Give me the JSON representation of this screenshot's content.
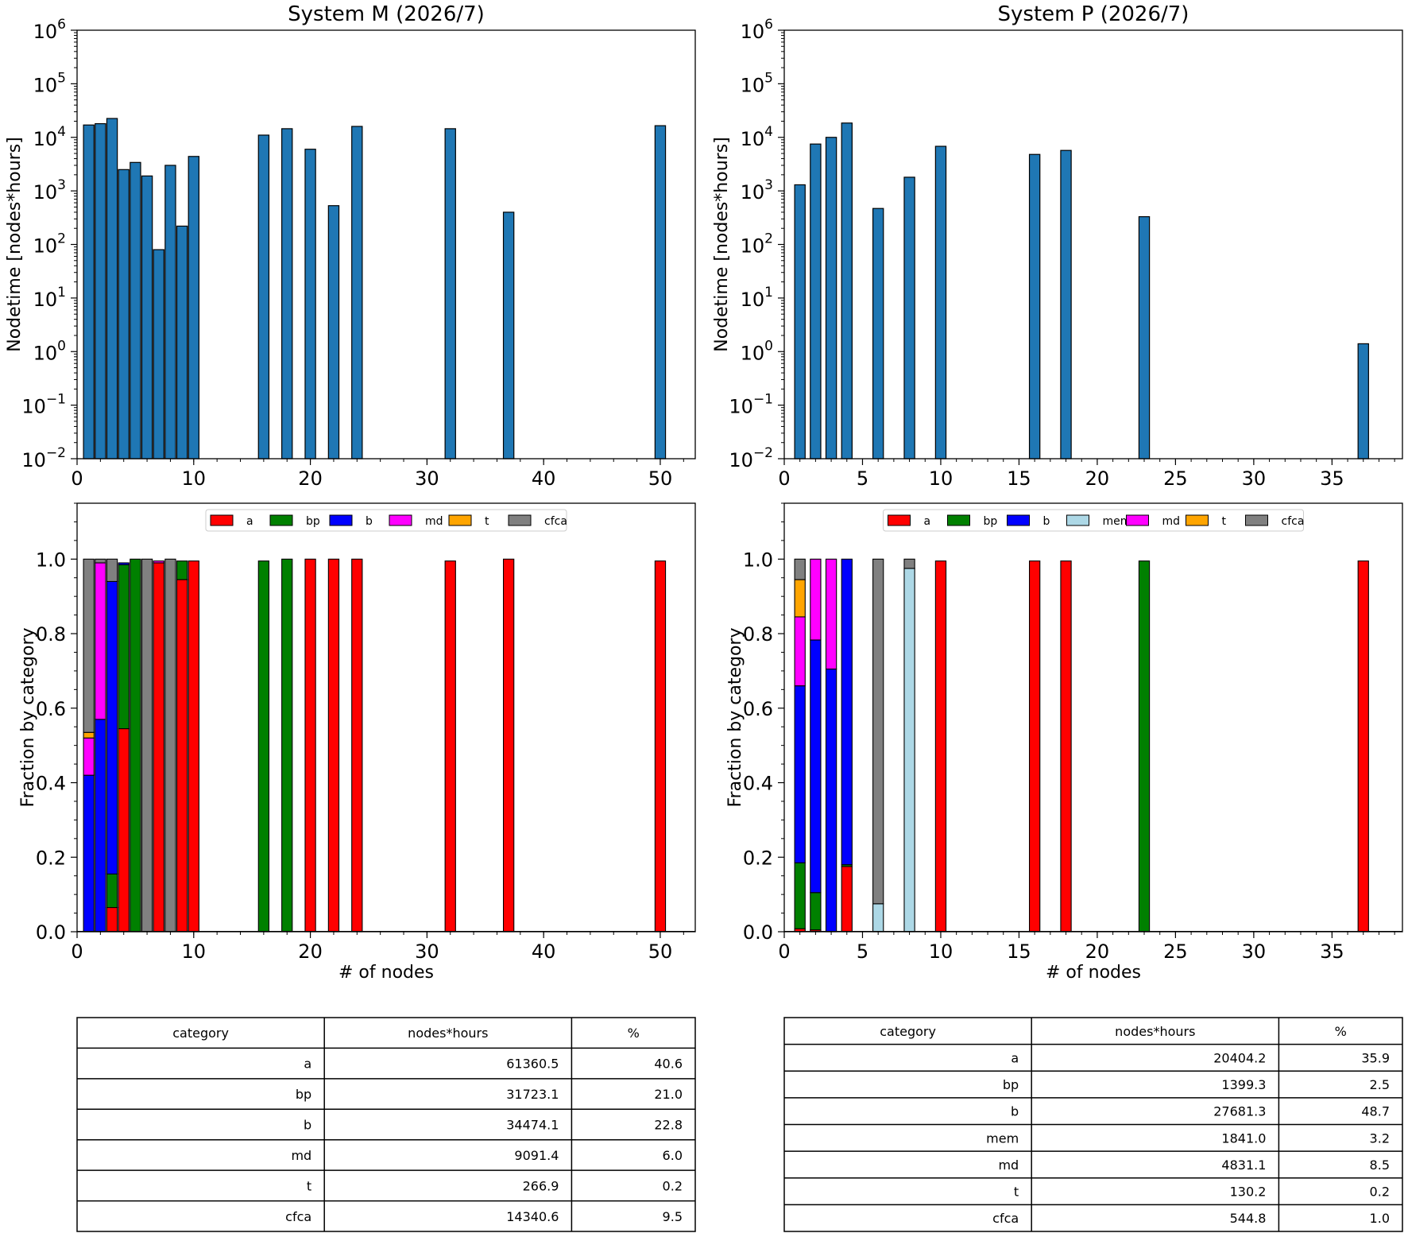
{
  "chart_data": [
    {
      "id": "m-hist",
      "type": "bar",
      "title": "System M (2026/7)",
      "ylabel": "Nodetime [nodes*hours]",
      "xlabel": "",
      "yscale": "log",
      "xlim": [
        0,
        53
      ],
      "ylim": [
        0.01,
        1000000
      ],
      "x_ticks": [
        0,
        10,
        20,
        30,
        40,
        50
      ],
      "y_ticks": [
        {
          "base": "10",
          "exp": "−2"
        },
        {
          "base": "10",
          "exp": "−1"
        },
        {
          "base": "10",
          "exp": "0"
        },
        {
          "base": "10",
          "exp": "1"
        },
        {
          "base": "10",
          "exp": "2"
        },
        {
          "base": "10",
          "exp": "3"
        },
        {
          "base": "10",
          "exp": "4"
        },
        {
          "base": "10",
          "exp": "5"
        },
        {
          "base": "10",
          "exp": "6"
        }
      ],
      "bar_color": "#1f77b4",
      "x": [
        1,
        2,
        3,
        4,
        5,
        6,
        7,
        8,
        9,
        10,
        16,
        18,
        20,
        22,
        24,
        32,
        37,
        50
      ],
      "values": [
        17000,
        18000,
        22500,
        2500,
        3400,
        1900,
        80,
        3000,
        220,
        4400,
        11000,
        14500,
        6000,
        530,
        16000,
        14500,
        400,
        16500
      ]
    },
    {
      "id": "p-hist",
      "type": "bar",
      "title": "System P (2026/7)",
      "ylabel": "Nodetime [nodes*hours]",
      "xlabel": "",
      "yscale": "log",
      "xlim": [
        0,
        39.5
      ],
      "ylim": [
        0.01,
        1000000
      ],
      "x_ticks": [
        0,
        5,
        10,
        15,
        20,
        25,
        30,
        35
      ],
      "y_ticks": [
        {
          "base": "10",
          "exp": "−2"
        },
        {
          "base": "10",
          "exp": "−1"
        },
        {
          "base": "10",
          "exp": "0"
        },
        {
          "base": "10",
          "exp": "1"
        },
        {
          "base": "10",
          "exp": "2"
        },
        {
          "base": "10",
          "exp": "3"
        },
        {
          "base": "10",
          "exp": "4"
        },
        {
          "base": "10",
          "exp": "5"
        },
        {
          "base": "10",
          "exp": "6"
        }
      ],
      "bar_color": "#1f77b4",
      "x": [
        1,
        2,
        3,
        4,
        6,
        8,
        10,
        16,
        18,
        23,
        37
      ],
      "values": [
        1300,
        7500,
        10000,
        18500,
        470,
        1800,
        6800,
        4800,
        5700,
        330,
        1.4
      ]
    },
    {
      "id": "m-frac",
      "type": "bar",
      "stacked": true,
      "title": "",
      "xlabel": "# of nodes",
      "ylabel": "Fraction by category",
      "xlim": [
        0,
        53
      ],
      "ylim": [
        0,
        1.15
      ],
      "x_ticks": [
        0,
        10,
        20,
        30,
        40,
        50
      ],
      "y_ticks": [
        "0.0",
        "0.2",
        "0.4",
        "0.6",
        "0.8",
        "1.0"
      ],
      "legend_position": "top-center",
      "x": [
        1,
        2,
        3,
        4,
        5,
        6,
        7,
        8,
        9,
        10,
        16,
        18,
        20,
        22,
        24,
        32,
        37,
        50
      ],
      "series": [
        {
          "name": "a",
          "color": "#ff0000",
          "values": [
            0,
            0,
            0.065,
            0.545,
            0,
            0,
            0.99,
            0,
            0.945,
            0.995,
            0,
            0,
            1,
            1,
            1,
            0.995,
            1,
            0.995
          ]
        },
        {
          "name": "bp",
          "color": "#008000",
          "values": [
            0,
            0,
            0.09,
            0.44,
            1,
            0,
            0,
            0,
            0.05,
            0,
            0.995,
            1,
            0,
            0,
            0,
            0,
            0,
            0
          ]
        },
        {
          "name": "b",
          "color": "#0000ff",
          "values": [
            0.42,
            0.57,
            0.785,
            0.005,
            0,
            0,
            0,
            0,
            0,
            0,
            0,
            0,
            0,
            0,
            0,
            0,
            0,
            0
          ]
        },
        {
          "name": "md",
          "color": "#ff00ff",
          "values": [
            0.1,
            0.42,
            0,
            0,
            0,
            0,
            0.005,
            0,
            0,
            0,
            0,
            0,
            0,
            0,
            0,
            0,
            0,
            0
          ]
        },
        {
          "name": "t",
          "color": "#ffa500",
          "values": [
            0.015,
            0,
            0,
            0,
            0,
            0,
            0,
            0,
            0,
            0,
            0,
            0,
            0,
            0,
            0,
            0,
            0,
            0
          ]
        },
        {
          "name": "cfca",
          "color": "#808080",
          "values": [
            0.465,
            0.01,
            0.06,
            0,
            0,
            1,
            0,
            1,
            0,
            0,
            0,
            0,
            0,
            0,
            0,
            0,
            0,
            0
          ]
        }
      ]
    },
    {
      "id": "p-frac",
      "type": "bar",
      "stacked": true,
      "title": "",
      "xlabel": "# of nodes",
      "ylabel": "Fraction by category",
      "xlim": [
        0,
        39.5
      ],
      "ylim": [
        0,
        1.15
      ],
      "x_ticks": [
        0,
        5,
        10,
        15,
        20,
        25,
        30,
        35
      ],
      "y_ticks": [
        "0.0",
        "0.2",
        "0.4",
        "0.6",
        "0.8",
        "1.0"
      ],
      "legend_position": "top-center",
      "x": [
        1,
        2,
        3,
        4,
        6,
        8,
        10,
        16,
        18,
        23,
        37
      ],
      "series": [
        {
          "name": "a",
          "color": "#ff0000",
          "values": [
            0.008,
            0.005,
            0,
            0.175,
            0,
            0,
            0.995,
            0.995,
            0.995,
            0,
            0.995
          ]
        },
        {
          "name": "bp",
          "color": "#008000",
          "values": [
            0.177,
            0.1,
            0,
            0.005,
            0,
            0,
            0,
            0,
            0,
            0.995,
            0
          ]
        },
        {
          "name": "b",
          "color": "#0000ff",
          "values": [
            0.475,
            0.678,
            0.705,
            0.82,
            0,
            0,
            0,
            0,
            0,
            0,
            0
          ]
        },
        {
          "name": "mem",
          "color": "#add8e6",
          "values": [
            0,
            0,
            0,
            0,
            0.075,
            0.975,
            0,
            0,
            0,
            0,
            0
          ]
        },
        {
          "name": "md",
          "color": "#ff00ff",
          "values": [
            0.185,
            0.217,
            0.295,
            0,
            0,
            0,
            0,
            0,
            0,
            0,
            0
          ]
        },
        {
          "name": "t",
          "color": "#ffa500",
          "values": [
            0.1,
            0,
            0,
            0,
            0,
            0,
            0,
            0,
            0,
            0,
            0
          ]
        },
        {
          "name": "cfca",
          "color": "#808080",
          "values": [
            0.055,
            0,
            0,
            0,
            0.925,
            0.025,
            0,
            0,
            0,
            0,
            0
          ]
        }
      ]
    },
    {
      "id": "m-table",
      "type": "table",
      "columns": [
        "category",
        "nodes*hours",
        "%"
      ],
      "rows": [
        [
          "a",
          "61360.5",
          "40.6"
        ],
        [
          "bp",
          "31723.1",
          "21.0"
        ],
        [
          "b",
          "34474.1",
          "22.8"
        ],
        [
          "md",
          "9091.4",
          "6.0"
        ],
        [
          "t",
          "266.9",
          "0.2"
        ],
        [
          "cfca",
          "14340.6",
          "9.5"
        ]
      ]
    },
    {
      "id": "p-table",
      "type": "table",
      "columns": [
        "category",
        "nodes*hours",
        "%"
      ],
      "rows": [
        [
          "a",
          "20404.2",
          "35.9"
        ],
        [
          "bp",
          "1399.3",
          "2.5"
        ],
        [
          "b",
          "27681.3",
          "48.7"
        ],
        [
          "mem",
          "1841.0",
          "3.2"
        ],
        [
          "md",
          "4831.1",
          "8.5"
        ],
        [
          "t",
          "130.2",
          "0.2"
        ],
        [
          "cfca",
          "544.8",
          "1.0"
        ]
      ]
    }
  ]
}
